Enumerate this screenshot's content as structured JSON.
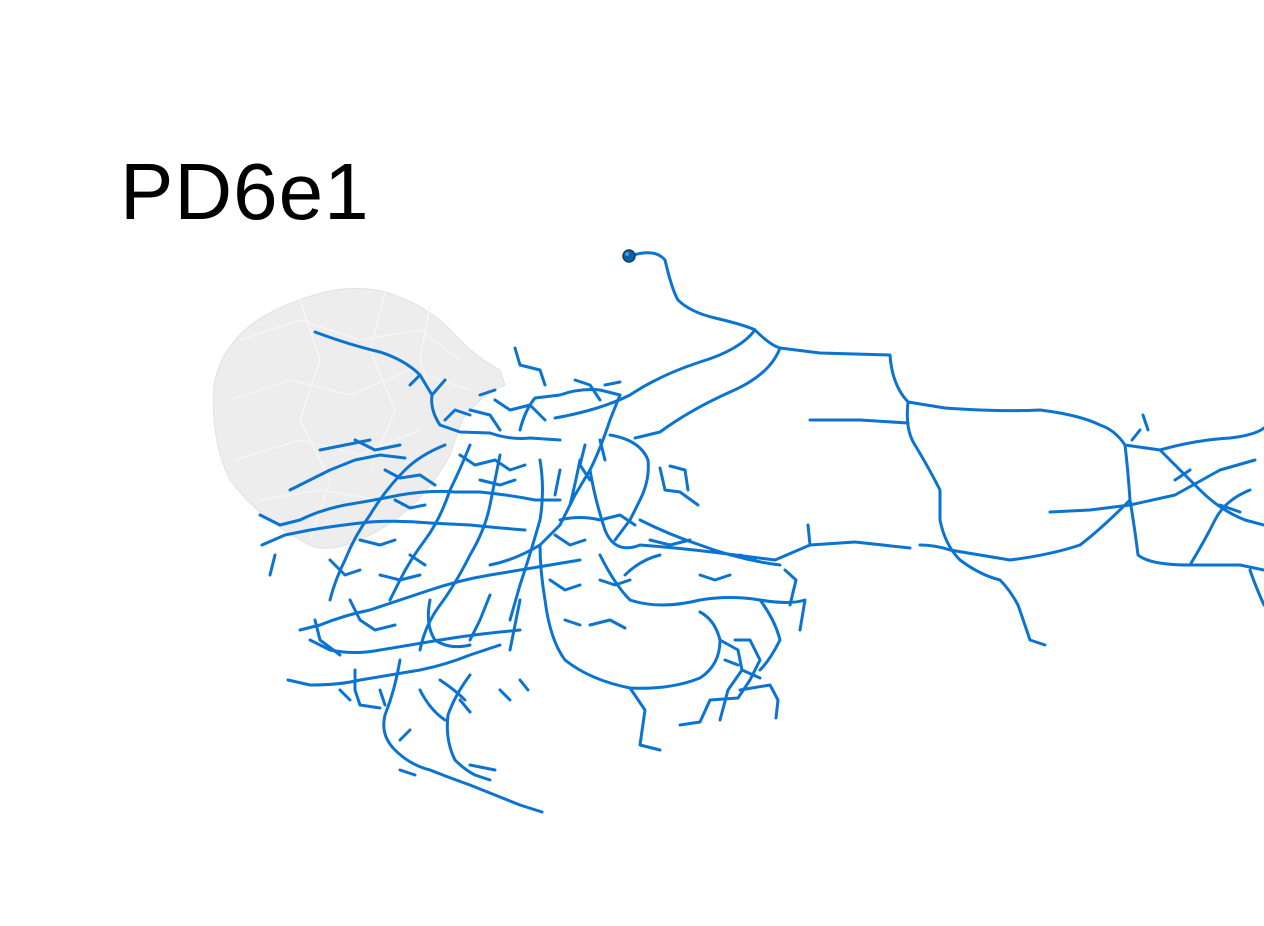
{
  "title": "PD6e1",
  "colors": {
    "neuron": "#0b73d0",
    "neuropil_mesh": "#e9e9e9",
    "background": "#ffffff",
    "soma": "#0d5fa8"
  },
  "items": {
    "neuron": "neuron-skeleton",
    "mesh": "neuropil-mesh",
    "soma": "soma-marker"
  }
}
